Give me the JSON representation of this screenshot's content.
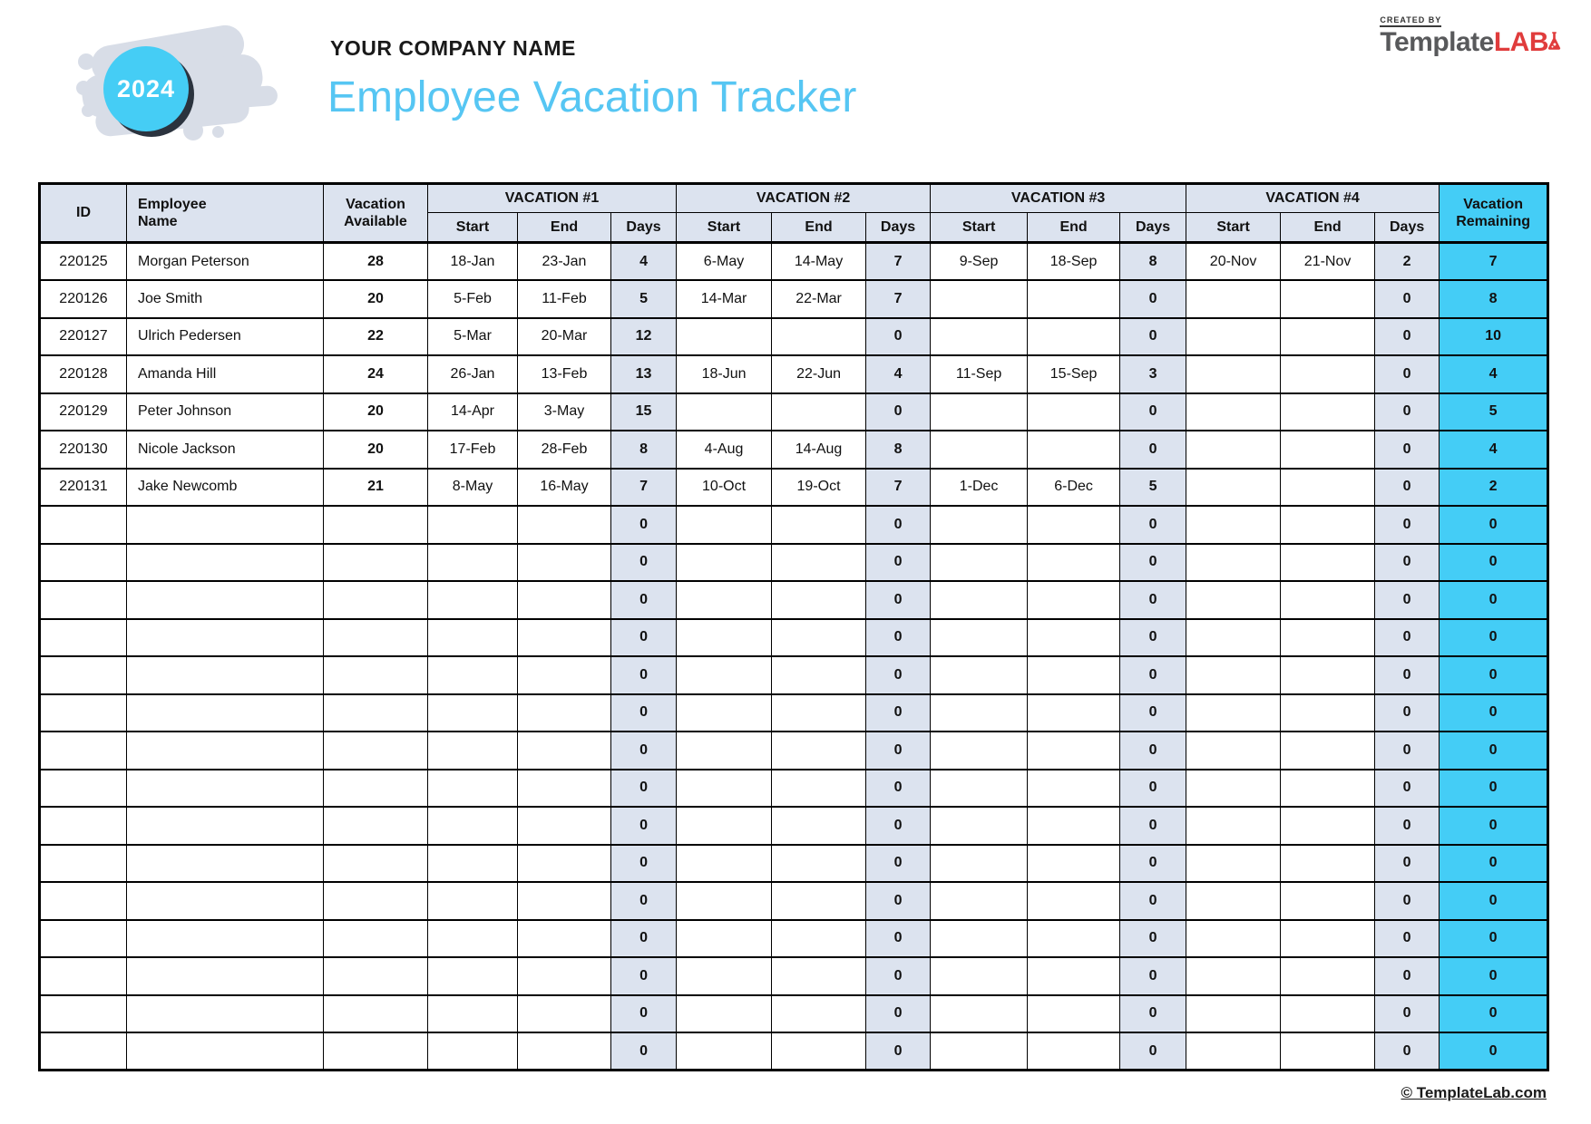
{
  "header": {
    "year_badge": "2024",
    "company_name": "YOUR COMPANY NAME",
    "page_title": "Employee Vacation Tracker",
    "brand": {
      "created_by": "CREATED BY",
      "name_gray": "Template",
      "name_red": "LAB"
    }
  },
  "table": {
    "headers": {
      "id": "ID",
      "employee_name": "Employee\nName",
      "vacation_available": "Vacation\nAvailable",
      "groups": [
        "VACATION #1",
        "VACATION #2",
        "VACATION #3",
        "VACATION #4"
      ],
      "start": "Start",
      "end": "End",
      "days": "Days",
      "vacation_remaining": "Vacation\nRemaining"
    },
    "rows": [
      [
        "220125",
        "Morgan Peterson",
        "28",
        "18-Jan",
        "23-Jan",
        "4",
        "6-May",
        "14-May",
        "7",
        "9-Sep",
        "18-Sep",
        "8",
        "20-Nov",
        "21-Nov",
        "2",
        "7"
      ],
      [
        "220126",
        "Joe Smith",
        "20",
        "5-Feb",
        "11-Feb",
        "5",
        "14-Mar",
        "22-Mar",
        "7",
        "",
        "",
        "0",
        "",
        "",
        "0",
        "8"
      ],
      [
        "220127",
        "Ulrich Pedersen",
        "22",
        "5-Mar",
        "20-Mar",
        "12",
        "",
        "",
        "0",
        "",
        "",
        "0",
        "",
        "",
        "0",
        "10"
      ],
      [
        "220128",
        "Amanda Hill",
        "24",
        "26-Jan",
        "13-Feb",
        "13",
        "18-Jun",
        "22-Jun",
        "4",
        "11-Sep",
        "15-Sep",
        "3",
        "",
        "",
        "0",
        "4"
      ],
      [
        "220129",
        "Peter Johnson",
        "20",
        "14-Apr",
        "3-May",
        "15",
        "",
        "",
        "0",
        "",
        "",
        "0",
        "",
        "",
        "0",
        "5"
      ],
      [
        "220130",
        "Nicole Jackson",
        "20",
        "17-Feb",
        "28-Feb",
        "8",
        "4-Aug",
        "14-Aug",
        "8",
        "",
        "",
        "0",
        "",
        "",
        "0",
        "4"
      ],
      [
        "220131",
        "Jake Newcomb",
        "21",
        "8-May",
        "16-May",
        "7",
        "10-Oct",
        "19-Oct",
        "7",
        "1-Dec",
        "6-Dec",
        "5",
        "",
        "",
        "0",
        "2"
      ]
    ],
    "empty_row": [
      "",
      "",
      "",
      "",
      "",
      "0",
      "",
      "",
      "0",
      "",
      "",
      "0",
      "",
      "",
      "0",
      "0"
    ],
    "empty_row_count": 15
  },
  "footer": {
    "credit": "© TemplateLab.com"
  },
  "colors": {
    "accent_cyan": "#45CDF5",
    "remaining_fill": "#44CDF6",
    "title_blue": "#56C6F3",
    "table_header_fill": "#DCE3EF",
    "logo_blob_gray": "#D8DDE7",
    "circle_shadow_navy": "#2B333E",
    "brand_red": "#E03C3C",
    "brand_gray": "#58595B"
  }
}
